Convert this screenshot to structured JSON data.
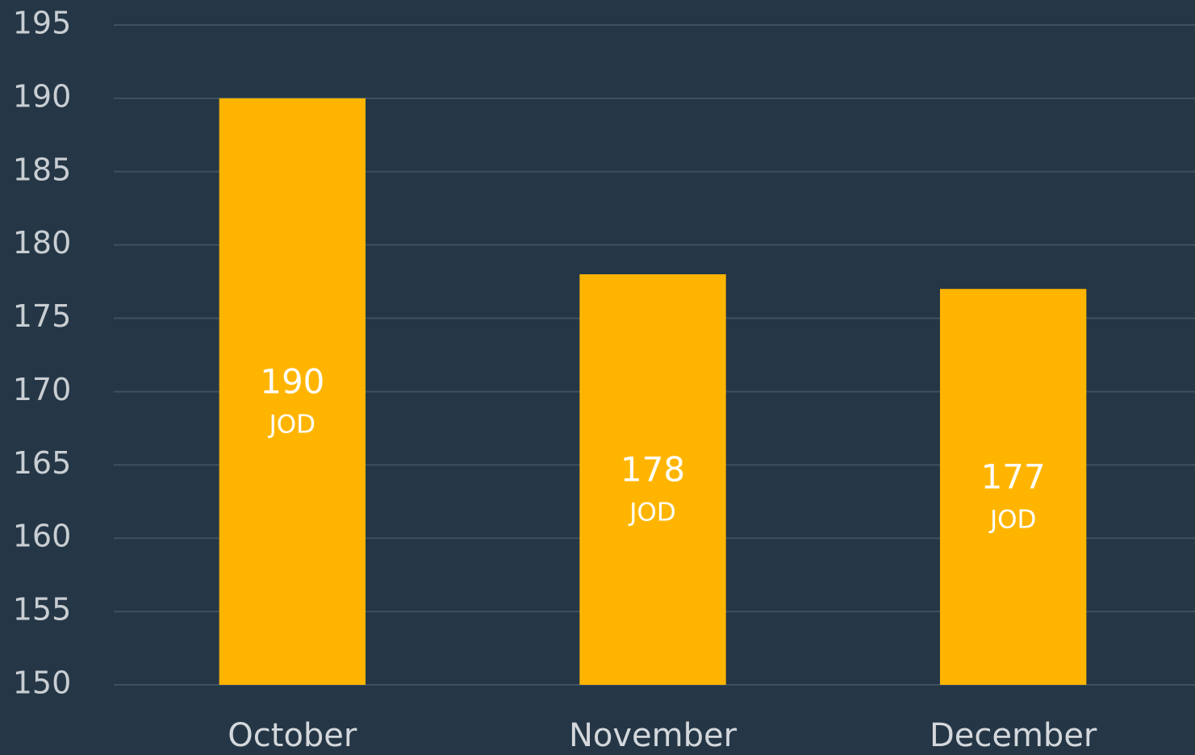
{
  "chart_data": {
    "type": "bar",
    "categories": [
      "October",
      "November",
      "December"
    ],
    "values": [
      190,
      178,
      177
    ],
    "value_labels": [
      "190 JOD",
      "178 JOD",
      "177 JOD"
    ],
    "color": "#ffb500",
    "ylim": [
      150,
      195
    ],
    "yticks": [
      150,
      155,
      160,
      165,
      170,
      175,
      180,
      185,
      190,
      195
    ],
    "grid": true
  }
}
